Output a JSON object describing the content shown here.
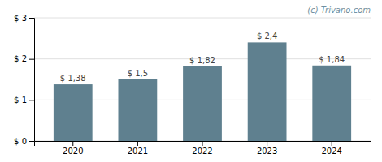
{
  "chart_data": {
    "type": "bar",
    "categories": [
      "2020",
      "2021",
      "2022",
      "2023",
      "2024"
    ],
    "values": [
      1.38,
      1.5,
      1.82,
      2.4,
      1.84
    ],
    "value_labels": [
      "$ 1,38",
      "$ 1,5",
      "$ 1,82",
      "$ 2,4",
      "$ 1,84"
    ],
    "data_labels": true,
    "color": "#5f808f",
    "ylim": [
      0,
      3
    ],
    "yticks": [
      {
        "value": 0,
        "label": "$ 0"
      },
      {
        "value": 1,
        "label": "$ 1"
      },
      {
        "value": 2,
        "label": "$ 2"
      },
      {
        "value": 3,
        "label": "$ 3"
      }
    ],
    "grid": true,
    "annotations": [
      {
        "text": "(c) Trivano.com",
        "color": "#7090a0"
      }
    ]
  }
}
